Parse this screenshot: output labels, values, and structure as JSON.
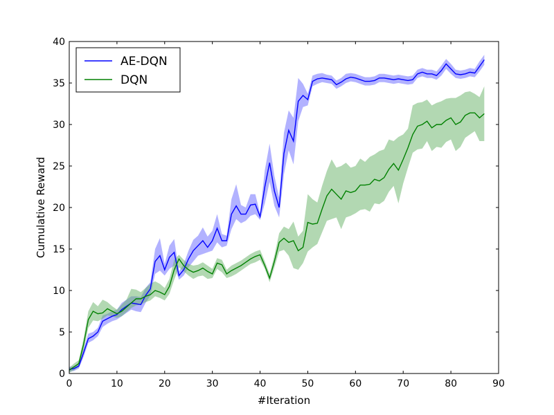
{
  "chart_data": {
    "type": "line",
    "xlabel": "#Iteration",
    "ylabel": "Cumulative Reward",
    "xlim": [
      0,
      90
    ],
    "ylim": [
      0,
      40
    ],
    "xticks": [
      0,
      10,
      20,
      30,
      40,
      50,
      60,
      70,
      80,
      90
    ],
    "yticks": [
      0,
      5,
      10,
      15,
      20,
      25,
      30,
      35,
      40
    ],
    "grid": false,
    "legend_position": "top-left",
    "series": [
      {
        "name": "AE-DQN",
        "color": "#0000ff",
        "band_color": "#6666ff",
        "x": [
          0,
          1,
          2,
          3,
          4,
          5,
          6,
          7,
          8,
          9,
          10,
          11,
          12,
          13,
          14,
          15,
          16,
          17,
          18,
          19,
          20,
          21,
          22,
          23,
          24,
          25,
          26,
          27,
          28,
          29,
          30,
          31,
          32,
          33,
          34,
          35,
          36,
          37,
          38,
          39,
          40,
          41,
          42,
          43,
          44,
          45,
          46,
          47,
          48,
          49,
          50,
          51,
          52,
          53,
          54,
          55,
          56,
          57,
          58,
          59,
          60,
          61,
          62,
          63,
          64,
          65,
          66,
          67,
          68,
          69,
          70,
          71,
          72,
          73,
          74,
          75,
          76,
          77,
          78,
          79,
          80,
          81,
          82,
          83,
          84,
          85,
          86,
          87
        ],
        "mean": [
          0.5,
          0.6,
          0.9,
          2.5,
          4.2,
          4.5,
          5.0,
          6.3,
          6.6,
          6.9,
          7.1,
          7.7,
          8.1,
          8.5,
          8.4,
          8.3,
          9.4,
          10.2,
          13.5,
          14.2,
          12.5,
          14.0,
          14.6,
          11.8,
          12.5,
          13.8,
          14.8,
          15.4,
          16.0,
          15.2,
          16.0,
          17.5,
          16.0,
          16.0,
          19.2,
          20.2,
          19.2,
          19.2,
          20.3,
          20.4,
          18.9,
          22.5,
          25.4,
          22.0,
          20.0,
          26.5,
          29.3,
          28.0,
          32.8,
          33.5,
          33.0,
          35.2,
          35.5,
          35.6,
          35.5,
          35.4,
          34.8,
          35.1,
          35.5,
          35.7,
          35.6,
          35.4,
          35.2,
          35.2,
          35.3,
          35.6,
          35.6,
          35.5,
          35.4,
          35.5,
          35.4,
          35.3,
          35.4,
          36.1,
          36.3,
          36.1,
          36.1,
          35.9,
          36.5,
          37.3,
          36.7,
          36.1,
          36.0,
          36.1,
          36.3,
          36.2,
          37.0,
          37.8
        ],
        "lower": [
          0.2,
          0.3,
          0.6,
          2.0,
          3.7,
          4.0,
          4.5,
          5.6,
          6.0,
          6.3,
          6.5,
          6.9,
          7.3,
          7.7,
          7.5,
          7.4,
          8.5,
          9.4,
          12.0,
          12.4,
          11.8,
          12.6,
          13.0,
          11.3,
          11.8,
          12.8,
          13.5,
          14.2,
          14.4,
          14.6,
          14.8,
          15.8,
          15.2,
          15.4,
          17.4,
          18.6,
          18.1,
          18.4,
          19.0,
          19.2,
          18.5,
          20.5,
          23.1,
          20.2,
          18.8,
          24.0,
          26.9,
          25.2,
          30.4,
          32.1,
          32.3,
          34.6,
          34.9,
          35.1,
          35.0,
          34.9,
          34.3,
          34.6,
          35.0,
          35.2,
          35.1,
          34.9,
          34.7,
          34.7,
          34.8,
          35.1,
          35.1,
          35.0,
          34.9,
          35.0,
          34.9,
          34.8,
          34.9,
          35.6,
          35.8,
          35.6,
          35.6,
          35.4,
          35.9,
          36.7,
          36.1,
          35.6,
          35.5,
          35.6,
          35.8,
          35.7,
          36.4,
          37.2
        ],
        "upper": [
          0.8,
          0.9,
          1.2,
          3.0,
          4.8,
          5.0,
          5.5,
          7.0,
          7.2,
          7.5,
          7.7,
          8.5,
          8.9,
          9.3,
          9.3,
          9.2,
          10.3,
          11.0,
          15.0,
          16.3,
          13.2,
          15.4,
          16.2,
          12.3,
          13.2,
          14.8,
          16.1,
          16.6,
          17.6,
          16.5,
          17.2,
          19.2,
          16.8,
          16.6,
          21.0,
          22.8,
          20.3,
          20.0,
          21.6,
          21.6,
          19.3,
          24.5,
          27.7,
          23.8,
          21.2,
          29.0,
          31.7,
          30.8,
          35.6,
          34.9,
          33.7,
          35.9,
          36.1,
          36.2,
          36.0,
          35.9,
          35.3,
          35.6,
          36.1,
          36.2,
          36.1,
          35.9,
          35.7,
          35.7,
          35.8,
          36.1,
          36.1,
          36.0,
          35.9,
          36.0,
          35.9,
          35.8,
          35.9,
          36.6,
          36.8,
          36.6,
          36.6,
          36.4,
          37.1,
          37.9,
          37.3,
          36.6,
          36.5,
          36.6,
          36.8,
          36.7,
          37.6,
          38.4
        ]
      },
      {
        "name": "DQN",
        "color": "#008000",
        "band_color": "#66b266",
        "x": [
          0,
          1,
          2,
          3,
          4,
          5,
          6,
          7,
          8,
          9,
          10,
          11,
          12,
          13,
          14,
          15,
          16,
          17,
          18,
          19,
          20,
          21,
          22,
          23,
          24,
          25,
          26,
          27,
          28,
          29,
          30,
          31,
          32,
          33,
          34,
          35,
          36,
          37,
          38,
          39,
          40,
          41,
          42,
          43,
          44,
          45,
          46,
          47,
          48,
          49,
          50,
          51,
          52,
          53,
          54,
          55,
          56,
          57,
          58,
          59,
          60,
          61,
          62,
          63,
          64,
          65,
          66,
          67,
          68,
          69,
          70,
          71,
          72,
          73,
          74,
          75,
          76,
          77,
          78,
          79,
          80,
          81,
          82,
          83,
          84,
          85,
          86,
          87
        ],
        "mean": [
          0.4,
          0.8,
          1.2,
          3.5,
          6.5,
          7.5,
          7.2,
          7.3,
          7.8,
          7.5,
          7.2,
          7.5,
          8.0,
          8.5,
          9.0,
          9.0,
          9.3,
          9.5,
          10.0,
          9.8,
          9.5,
          10.5,
          12.5,
          13.8,
          13.0,
          12.5,
          12.2,
          12.4,
          12.7,
          12.3,
          12.0,
          13.3,
          13.1,
          12.0,
          12.4,
          12.7,
          13.0,
          13.4,
          13.8,
          14.1,
          14.3,
          13.0,
          11.5,
          13.5,
          15.8,
          16.3,
          15.8,
          16.0,
          14.8,
          15.2,
          18.2,
          18.0,
          18.1,
          19.8,
          21.4,
          22.2,
          21.6,
          21.0,
          22.0,
          21.8,
          22.0,
          22.7,
          22.7,
          22.8,
          23.4,
          23.2,
          23.6,
          24.6,
          25.3,
          24.5,
          25.8,
          27.2,
          28.8,
          29.8,
          30.0,
          30.4,
          29.6,
          30.0,
          30.0,
          30.5,
          30.8,
          30.0,
          30.3,
          31.1,
          31.4,
          31.4,
          30.8,
          31.3
        ],
        "lower": [
          0.1,
          0.4,
          0.8,
          2.8,
          5.5,
          6.4,
          6.3,
          6.6,
          7.0,
          6.9,
          6.7,
          6.9,
          7.4,
          7.9,
          8.2,
          8.3,
          8.6,
          8.8,
          9.3,
          9.1,
          8.8,
          9.6,
          11.3,
          12.8,
          12.3,
          11.8,
          11.4,
          11.7,
          11.8,
          11.4,
          11.5,
          12.6,
          12.2,
          11.5,
          11.7,
          12.0,
          12.4,
          12.8,
          13.2,
          13.4,
          13.7,
          12.6,
          11.0,
          12.8,
          14.7,
          14.9,
          14.2,
          12.7,
          12.5,
          13.3,
          14.7,
          15.2,
          15.6,
          17.0,
          18.4,
          18.6,
          18.8,
          17.4,
          18.8,
          19.0,
          19.3,
          19.7,
          19.8,
          19.5,
          20.5,
          20.4,
          20.8,
          21.9,
          22.6,
          20.5,
          22.9,
          24.8,
          26.6,
          27.0,
          27.1,
          28.0,
          26.8,
          27.3,
          27.2,
          27.9,
          28.2,
          26.8,
          27.3,
          28.4,
          28.8,
          29.2,
          28.0,
          28.0
        ],
        "upper": [
          0.7,
          1.2,
          1.6,
          4.2,
          7.5,
          8.6,
          8.1,
          8.9,
          8.6,
          8.1,
          7.7,
          8.3,
          8.9,
          10.2,
          10.1,
          9.8,
          10.3,
          10.8,
          11.1,
          10.8,
          10.3,
          11.4,
          13.7,
          14.3,
          13.7,
          13.2,
          13.0,
          13.1,
          13.4,
          13.0,
          12.6,
          13.9,
          13.7,
          12.5,
          13.0,
          13.3,
          13.6,
          14.0,
          14.4,
          14.7,
          14.9,
          13.5,
          12.0,
          14.2,
          16.9,
          17.7,
          17.4,
          18.3,
          16.5,
          17.2,
          21.6,
          21.0,
          20.6,
          22.6,
          24.4,
          25.8,
          24.8,
          25.0,
          25.4,
          24.8,
          25.0,
          25.9,
          25.5,
          26.1,
          26.4,
          26.8,
          27.0,
          28.2,
          28.0,
          28.5,
          28.8,
          29.5,
          32.3,
          32.6,
          32.7,
          33.0,
          32.3,
          32.6,
          32.8,
          33.1,
          33.2,
          33.2,
          33.5,
          33.9,
          34.0,
          33.7,
          33.3,
          34.6
        ]
      }
    ]
  }
}
